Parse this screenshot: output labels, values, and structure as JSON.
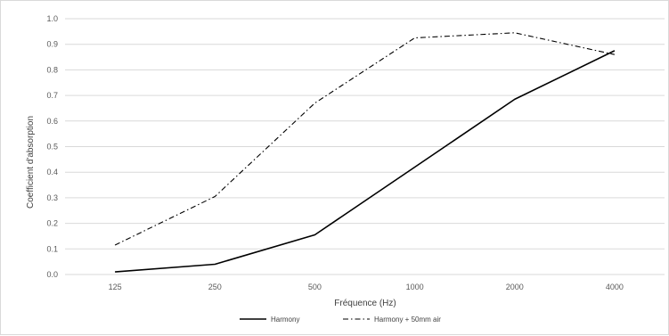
{
  "chart_data": {
    "type": "line",
    "title": "",
    "xlabel": "Fréquence (Hz)",
    "ylabel": "Coefficient d'absorption",
    "categories": [
      "125",
      "250",
      "500",
      "1000",
      "2000",
      "4000"
    ],
    "ylim": [
      0,
      1.0
    ],
    "yticks": [
      "0.0",
      "0.1",
      "0.2",
      "0.3",
      "0.4",
      "0.5",
      "0.6",
      "0.7",
      "0.8",
      "0.9",
      "1.0"
    ],
    "grid": true,
    "legend_position": "bottom",
    "series": [
      {
        "name": "Harmony",
        "values": [
          0.01,
          0.04,
          0.155,
          0.42,
          0.685,
          0.875
        ],
        "color": "#000000",
        "dash": "solid"
      },
      {
        "name": "Harmony + 50mm air",
        "values": [
          0.115,
          0.305,
          0.67,
          0.925,
          0.945,
          0.86
        ],
        "color": "#000000",
        "dash": "dash-dot"
      }
    ]
  }
}
